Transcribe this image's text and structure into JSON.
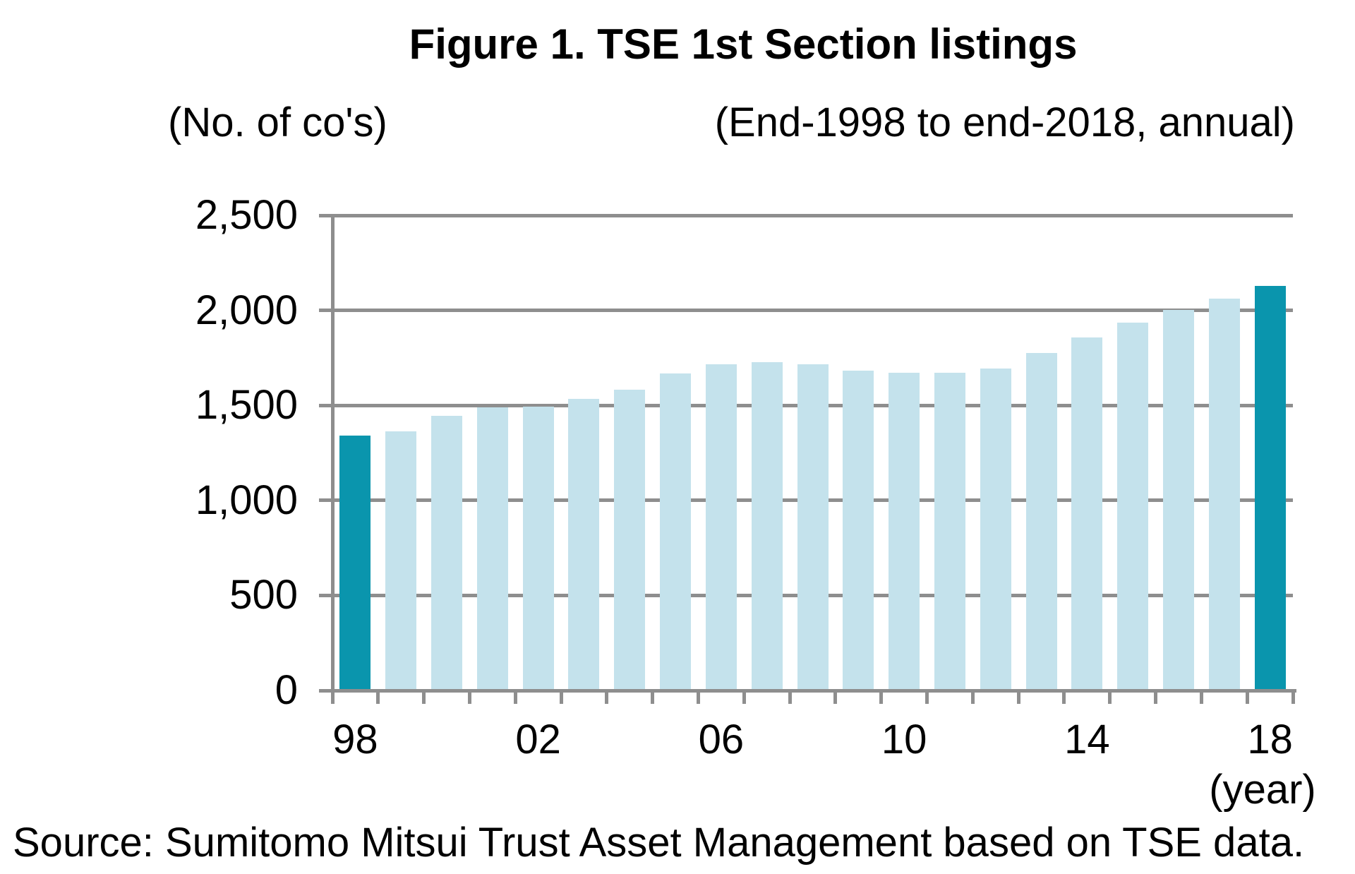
{
  "title": "Figure 1. TSE 1st Section listings",
  "y_unit_label": "(No. of co's)",
  "period_label": "(End-1998 to end-2018, annual)",
  "x_unit_label": "(year)",
  "source_note": "Source: Sumitomo Mitsui Trust Asset Management based on TSE data.",
  "colors": {
    "bar": "#c4e2ec",
    "bar_highlight": "#0a95ad",
    "grid": "#8e8e8e",
    "text": "#000000",
    "background": "#ffffff"
  },
  "chart_data": {
    "type": "bar",
    "title": "Figure 1. TSE 1st Section listings",
    "subtitle": "(End-1998 to end-2018, annual)",
    "ylabel": "(No. of co's)",
    "xlabel": "(year)",
    "ylim": [
      0,
      2500
    ],
    "ytick_interval": 500,
    "grid": true,
    "legend": false,
    "yticks": [
      {
        "value": 0,
        "label": "0"
      },
      {
        "value": 500,
        "label": "500"
      },
      {
        "value": 1000,
        "label": "1,000"
      },
      {
        "value": 1500,
        "label": "1,500"
      },
      {
        "value": 2000,
        "label": "2,000"
      },
      {
        "value": 2500,
        "label": "2,500"
      }
    ],
    "categories": [
      1998,
      1999,
      2000,
      2001,
      2002,
      2003,
      2004,
      2005,
      2006,
      2007,
      2008,
      2009,
      2010,
      2011,
      2012,
      2013,
      2014,
      2015,
      2016,
      2017,
      2018
    ],
    "values": [
      1340,
      1364,
      1447,
      1491,
      1494,
      1533,
      1584,
      1667,
      1715,
      1727,
      1715,
      1684,
      1670,
      1672,
      1695,
      1774,
      1858,
      1934,
      2002,
      2062,
      2128
    ],
    "highlighted_categories": [
      1998,
      2018
    ],
    "xticks": [
      {
        "index": 0,
        "label": "98"
      },
      {
        "index": 4,
        "label": "02"
      },
      {
        "index": 8,
        "label": "06"
      },
      {
        "index": 12,
        "label": "10"
      },
      {
        "index": 16,
        "label": "14"
      },
      {
        "index": 20,
        "label": "18"
      }
    ]
  }
}
